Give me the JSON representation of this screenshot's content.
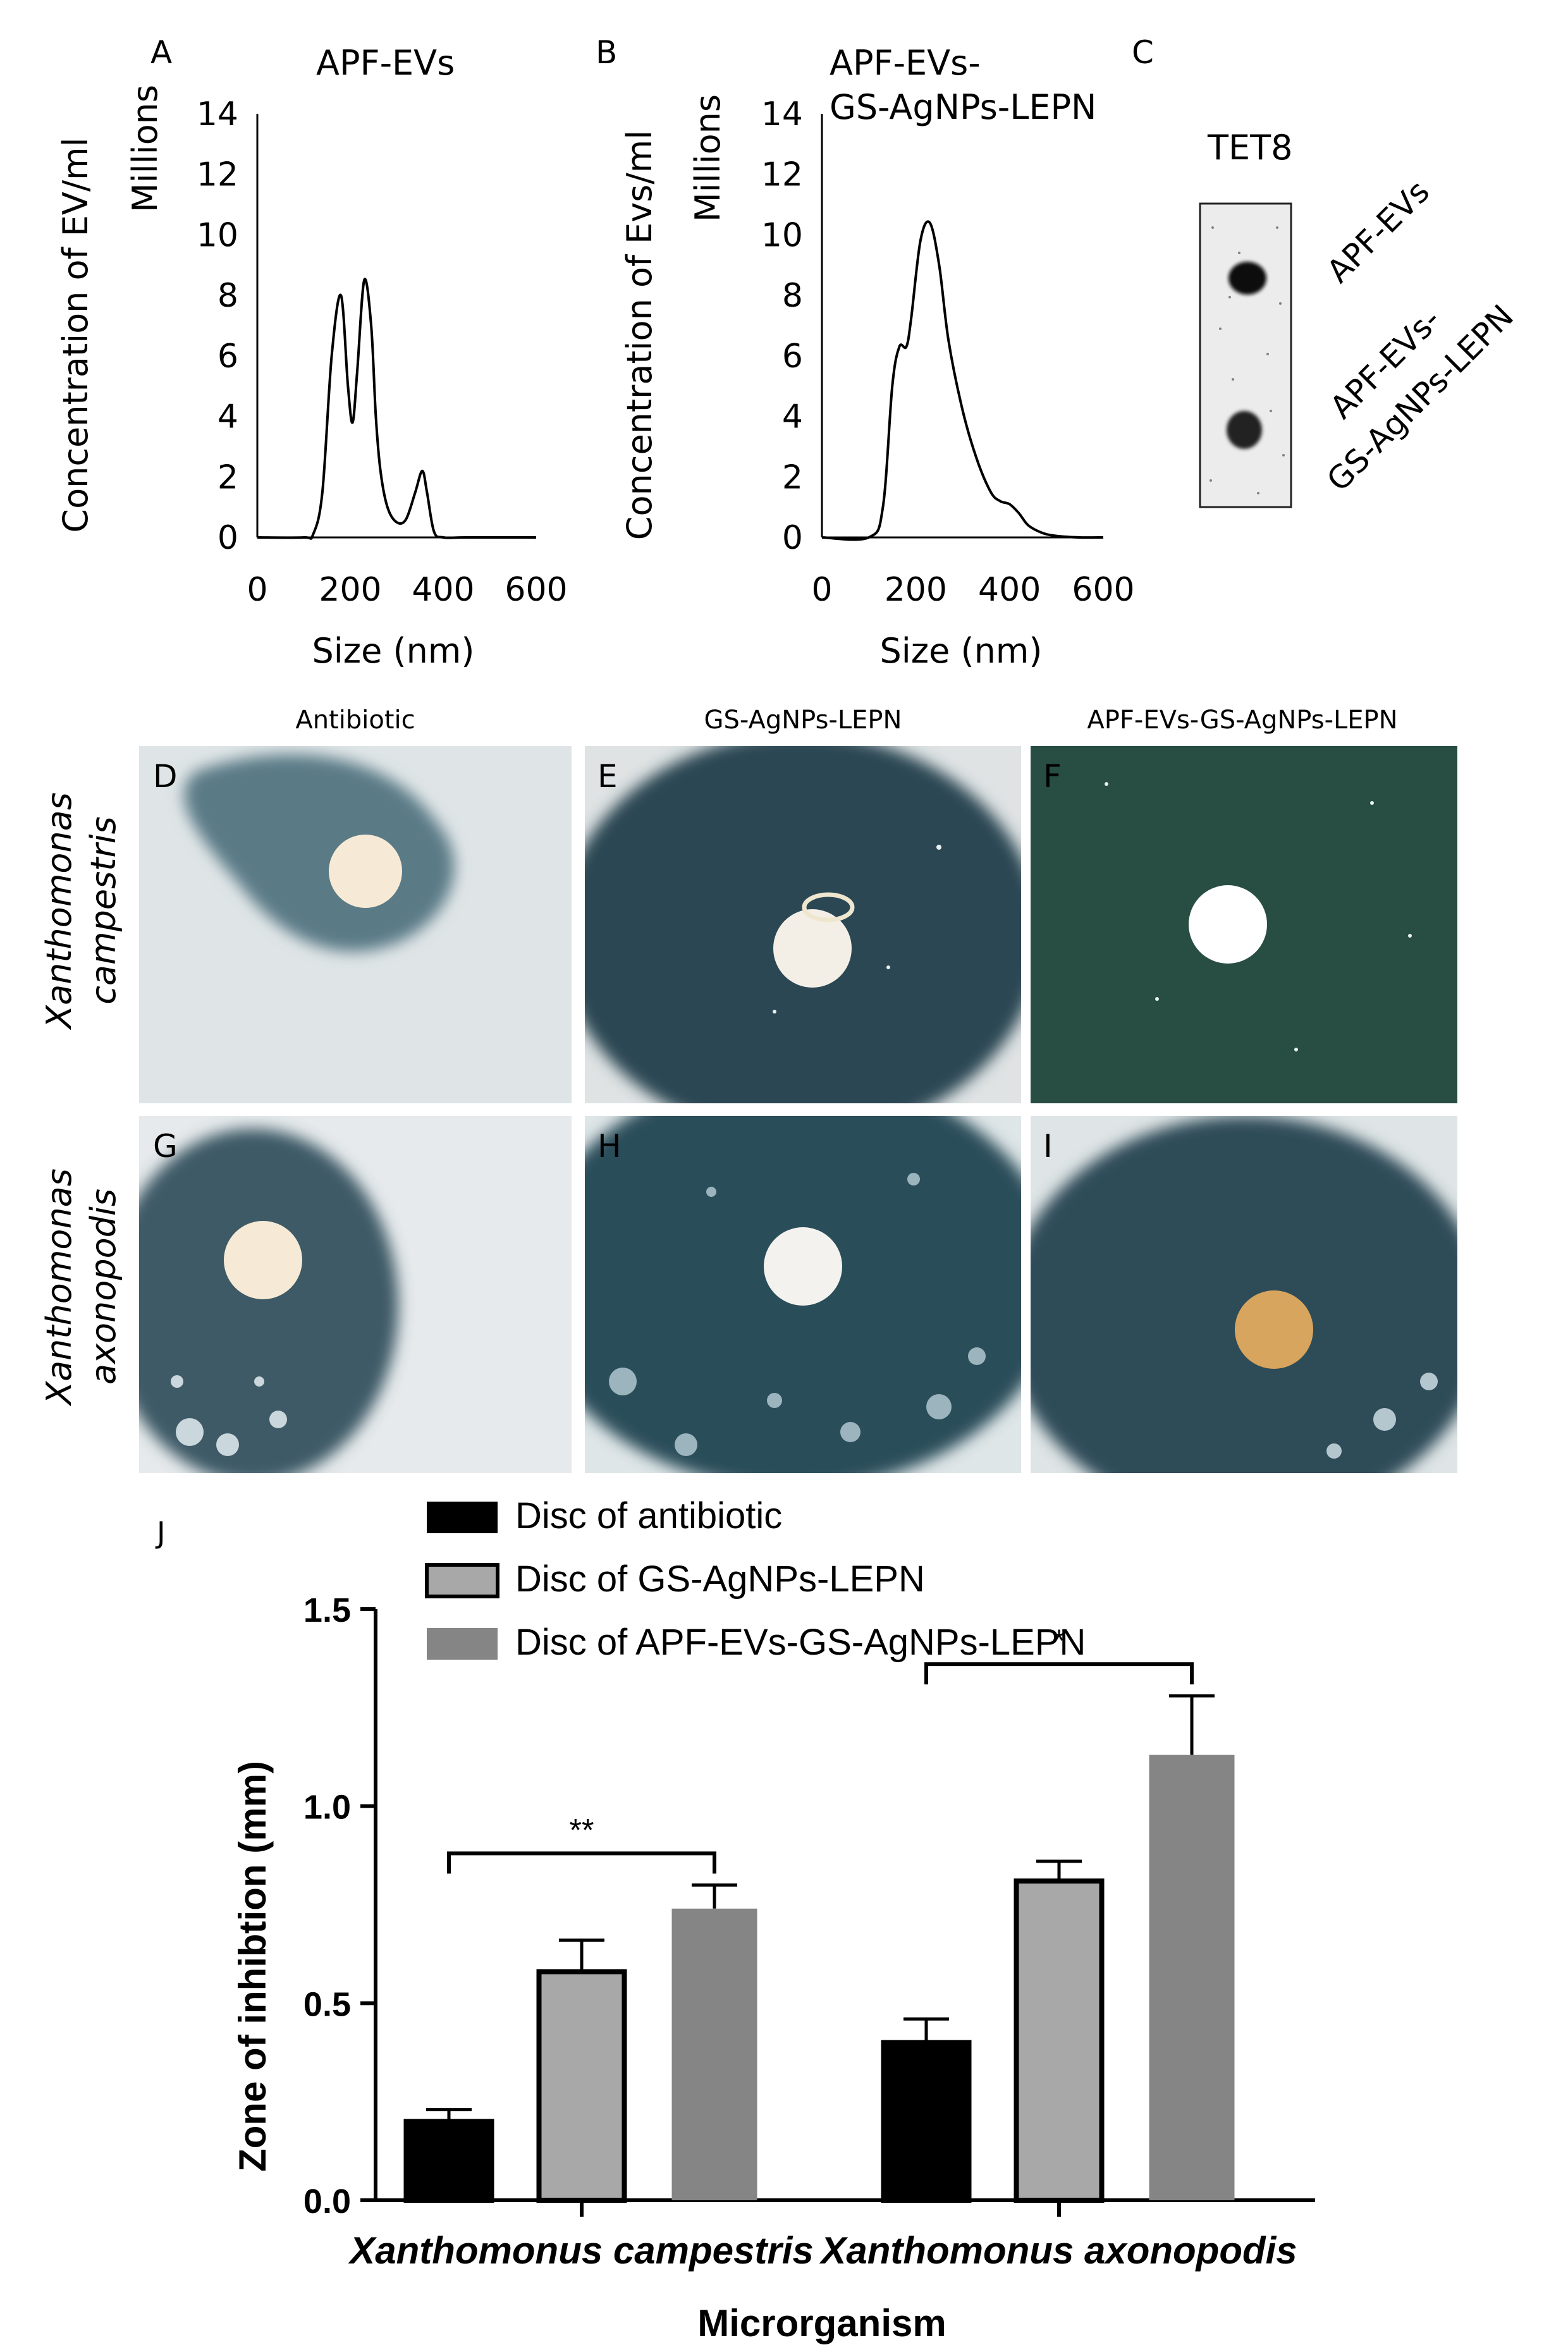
{
  "panels": {
    "a": {
      "letter": "A",
      "title": "APF-EVs"
    },
    "b": {
      "letter": "B",
      "title_line1": "APF-EVs-",
      "title_line2": "GS-AgNPs-LEPN"
    },
    "c": {
      "letter": "C",
      "blot_label": "TET8",
      "lane1": "APF-EVs",
      "lane2_line1": "APF-EVs-",
      "lane2_line2": "GS-AgNPs-LEPN"
    },
    "j": {
      "letter": "J"
    }
  },
  "photos": {
    "columns": [
      "Antibiotic",
      "GS-AgNPs-LEPN",
      "APF-EVs-GS-AgNPs-LEPN"
    ],
    "rows": [
      {
        "line1": "Xanthomonas",
        "line2": "campestris"
      },
      {
        "line1": "Xanthomonas",
        "line2": "axonopodis"
      }
    ],
    "letters": [
      "D",
      "E",
      "F",
      "G",
      "H",
      "I"
    ],
    "colors": {
      "plate": "#e4e8ea",
      "zone": "#2c4a58",
      "zone_green": "#23483e",
      "disc": "#f4ead6",
      "disc_tan": "#d9a860"
    }
  },
  "chart_data": [
    {
      "type": "line",
      "panel": "A",
      "title": "APF-EVs",
      "xlabel": "Size (nm)",
      "ylabel": "Concentration of EV/ml",
      "y_unit": "Millions",
      "xlim": [
        0,
        600
      ],
      "ylim": [
        0,
        14
      ],
      "xticks": [
        0,
        200,
        400,
        600
      ],
      "yticks": [
        0,
        2,
        4,
        6,
        8,
        10,
        12,
        14
      ],
      "grid": false,
      "x": [
        0,
        100,
        120,
        140,
        160,
        180,
        195,
        205,
        215,
        230,
        245,
        255,
        265,
        280,
        300,
        320,
        340,
        355,
        365,
        380,
        400,
        450,
        600
      ],
      "y": [
        0,
        0,
        0.1,
        1.5,
        6.0,
        8.0,
        5.0,
        3.8,
        5.5,
        8.5,
        7.0,
        4.0,
        2.2,
        1.0,
        0.5,
        0.6,
        1.5,
        2.2,
        1.5,
        0.2,
        0,
        0,
        0
      ]
    },
    {
      "type": "line",
      "panel": "B",
      "title": "APF-EVs-GS-AgNPs-LEPN",
      "xlabel": "Size (nm)",
      "ylabel": "Concentration of Evs/ml",
      "y_unit": "Millions",
      "xlim": [
        0,
        600
      ],
      "ylim": [
        0,
        14
      ],
      "xticks": [
        0,
        200,
        400,
        600
      ],
      "yticks": [
        0,
        2,
        4,
        6,
        8,
        10,
        12,
        14
      ],
      "grid": false,
      "x": [
        0,
        100,
        130,
        150,
        165,
        180,
        190,
        210,
        230,
        250,
        270,
        300,
        330,
        360,
        380,
        400,
        420,
        440,
        470,
        500,
        550,
        600
      ],
      "y": [
        0,
        0,
        1.0,
        5.0,
        6.3,
        6.3,
        7.2,
        9.8,
        10.4,
        9.0,
        6.5,
        4.2,
        2.6,
        1.5,
        1.2,
        1.1,
        0.8,
        0.4,
        0.15,
        0.05,
        0,
        0
      ]
    },
    {
      "type": "bar",
      "panel": "J",
      "categories": [
        "Xanthomonus campestris",
        "Xanthomonus axonopodis"
      ],
      "xlabel": "Microrganism",
      "ylabel": "Zone of inhibtion (mm)",
      "ylim": [
        0,
        1.5
      ],
      "yticks": [
        "0.0",
        "0.5",
        "1.0",
        "1.5"
      ],
      "legend_position": "top",
      "series": [
        {
          "name": "Disc of antibiotic",
          "values": [
            0.2,
            0.4
          ],
          "errors": [
            0.03,
            0.06
          ],
          "color": "#000000"
        },
        {
          "name": "Disc of GS-AgNPs-LEPN",
          "values": [
            0.58,
            0.81
          ],
          "errors": [
            0.08,
            0.05
          ],
          "color": "#a8a8a8"
        },
        {
          "name": "Disc of APF-EVs-GS-AgNPs-LEPN",
          "values": [
            0.74,
            1.13
          ],
          "errors": [
            0.06,
            0.15
          ],
          "color": "#858585"
        }
      ],
      "significance": [
        {
          "category": 0,
          "from_series": 0,
          "to_series": 2,
          "label": "**"
        },
        {
          "category": 1,
          "from_series": 0,
          "to_series": 2,
          "label": "*"
        }
      ]
    }
  ]
}
